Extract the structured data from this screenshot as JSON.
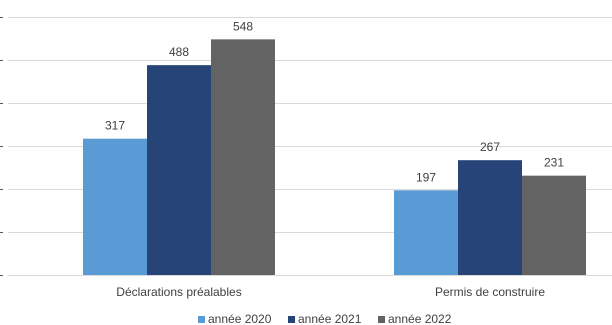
{
  "chart_data": {
    "type": "bar",
    "categories": [
      "Déclarations préalables",
      "Permis de construire"
    ],
    "series": [
      {
        "name": "année 2020",
        "values": [
          317,
          197
        ],
        "color": "#5B9BD5"
      },
      {
        "name": "année 2021",
        "values": [
          488,
          267
        ],
        "color": "#264478"
      },
      {
        "name": "année 2022",
        "values": [
          548,
          231
        ],
        "color": "#636363"
      }
    ],
    "ylim": [
      0,
      600
    ],
    "y_gridlines": [
      0,
      100,
      200,
      300,
      400,
      500,
      600
    ],
    "grid": true,
    "legend": "bottom",
    "data_labels": true,
    "colors": {
      "gridline": "#D9D9D9",
      "text": "#404040"
    }
  }
}
